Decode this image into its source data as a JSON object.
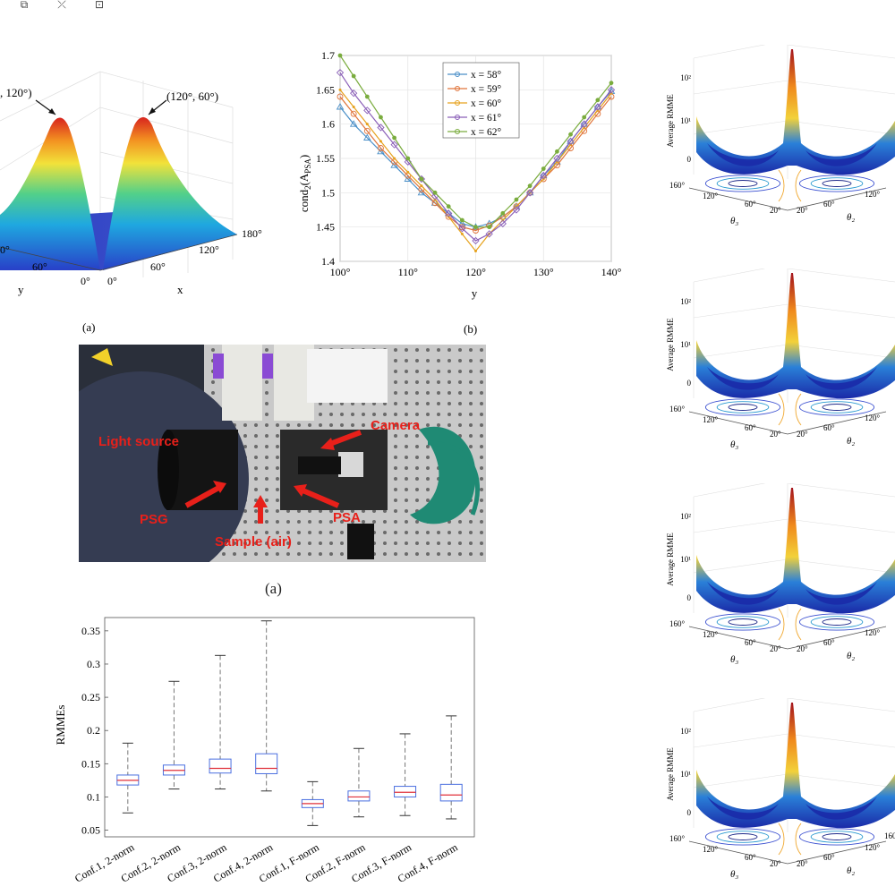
{
  "toolbar": {
    "icons": [
      "copy-icon",
      "split-icon",
      "expand-icon"
    ]
  },
  "surface3d": {
    "peak_left_label": ", 120°)",
    "peak_right_label": "(120°, 60°)",
    "axis_y_label": "y",
    "axis_x_label": "x",
    "y_ticks": [
      "0°",
      "60°",
      "0°"
    ],
    "x_ticks": [
      "0°",
      "60°",
      "120°",
      "180°"
    ],
    "caption": "(a)"
  },
  "cond_chart_caption": "(b)",
  "chart_data": [
    {
      "type": "line",
      "ylabel": "cond₂(A_PSA)",
      "xlabel": "y",
      "x": [
        100,
        102,
        104,
        106,
        108,
        110,
        112,
        114,
        116,
        118,
        120,
        122,
        124,
        126,
        128,
        130,
        132,
        134,
        136,
        138,
        140
      ],
      "xticks": [
        "100°",
        "110°",
        "120°",
        "130°",
        "140°"
      ],
      "yticks": [
        "1.4",
        "1.45",
        "1.5",
        "1.55",
        "1.6",
        "1.65",
        "1.7"
      ],
      "ylim": [
        1.4,
        1.7
      ],
      "xlim": [
        100,
        140
      ],
      "legend_position": "top-center",
      "grid": true,
      "series": [
        {
          "name": "x = 58°",
          "color": "#4a8fc8",
          "marker": "triangle",
          "values": [
            1.625,
            1.6,
            1.58,
            1.56,
            1.54,
            1.52,
            1.5,
            1.485,
            1.47,
            1.455,
            1.45,
            1.455,
            1.465,
            1.48,
            1.5,
            1.525,
            1.545,
            1.575,
            1.6,
            1.625,
            1.648
          ]
        },
        {
          "name": "x = 59°",
          "color": "#e0743a",
          "marker": "circle",
          "values": [
            1.64,
            1.615,
            1.59,
            1.565,
            1.545,
            1.525,
            1.505,
            1.485,
            1.465,
            1.45,
            1.445,
            1.452,
            1.465,
            1.48,
            1.5,
            1.52,
            1.54,
            1.565,
            1.59,
            1.615,
            1.64
          ]
        },
        {
          "name": "x = 60°",
          "color": "#e6a21e",
          "marker": "none",
          "values": [
            1.65,
            1.625,
            1.6,
            1.575,
            1.55,
            1.53,
            1.51,
            1.49,
            1.465,
            1.44,
            1.415,
            1.44,
            1.46,
            1.48,
            1.5,
            1.52,
            1.545,
            1.57,
            1.595,
            1.62,
            1.645
          ]
        },
        {
          "name": "x = 61°",
          "color": "#8a5fb8",
          "marker": "diamond",
          "values": [
            1.675,
            1.645,
            1.62,
            1.595,
            1.57,
            1.545,
            1.52,
            1.495,
            1.47,
            1.448,
            1.43,
            1.44,
            1.455,
            1.475,
            1.5,
            1.525,
            1.55,
            1.575,
            1.6,
            1.625,
            1.65
          ]
        },
        {
          "name": "x = 62°",
          "color": "#7aac3e",
          "marker": "dot",
          "values": [
            1.7,
            1.67,
            1.64,
            1.61,
            1.58,
            1.55,
            1.52,
            1.5,
            1.48,
            1.46,
            1.45,
            1.45,
            1.47,
            1.49,
            1.51,
            1.535,
            1.56,
            1.585,
            1.61,
            1.635,
            1.66
          ]
        }
      ]
    },
    {
      "type": "bar",
      "subtype": "boxplot",
      "ylabel": "RMMEs",
      "categories": [
        "Conf.1, 2-norm",
        "Conf.2, 2-norm",
        "Conf.3, 2-norm",
        "Conf.4, 2-norm",
        "Conf.1, F-norm",
        "Conf.2, F-norm",
        "Conf.3, F-norm",
        "Conf.4, F-norm"
      ],
      "yticks": [
        "0.05",
        "0.1",
        "0.15",
        "0.2",
        "0.25",
        "0.3",
        "0.35"
      ],
      "ylim": [
        0.04,
        0.37
      ],
      "boxes": [
        {
          "min": 0.076,
          "q1": 0.118,
          "median": 0.125,
          "q3": 0.133,
          "max": 0.181
        },
        {
          "min": 0.112,
          "q1": 0.133,
          "median": 0.14,
          "q3": 0.148,
          "max": 0.274
        },
        {
          "min": 0.112,
          "q1": 0.136,
          "median": 0.143,
          "q3": 0.157,
          "max": 0.313
        },
        {
          "min": 0.109,
          "q1": 0.135,
          "median": 0.143,
          "q3": 0.165,
          "max": 0.365
        },
        {
          "min": 0.057,
          "q1": 0.084,
          "median": 0.09,
          "q3": 0.096,
          "max": 0.123
        },
        {
          "min": 0.07,
          "q1": 0.094,
          "median": 0.1,
          "q3": 0.109,
          "max": 0.173
        },
        {
          "min": 0.072,
          "q1": 0.1,
          "median": 0.107,
          "q3": 0.116,
          "max": 0.195
        },
        {
          "min": 0.067,
          "q1": 0.094,
          "median": 0.103,
          "q3": 0.119,
          "max": 0.222
        }
      ]
    }
  ],
  "photo": {
    "labels": {
      "light_source": "Light source",
      "camera": "Camera",
      "psg": "PSG",
      "psa": "PSA",
      "sample": "Sample (air)"
    },
    "caption": "(a)"
  },
  "rmme_panels": [
    {
      "zlabel": "Average RMME",
      "zticks": [
        "10²",
        "10¹",
        "0"
      ],
      "left_ticks": [
        "160°",
        "120°",
        "60°",
        "20°"
      ],
      "right_ticks": [
        "20°",
        "60°",
        "120°"
      ],
      "theta_left": "θ₃",
      "theta_right": "θ₂"
    },
    {
      "zlabel": "Average RMME",
      "zticks": [
        "10²",
        "10¹",
        "0"
      ],
      "left_ticks": [
        "160°",
        "120°",
        "60°",
        "20°"
      ],
      "right_ticks": [
        "20°",
        "60°",
        "120°"
      ],
      "theta_left": "θ₃",
      "theta_right": "θ₂"
    },
    {
      "zlabel": "Average RMME",
      "zticks": [
        "10²",
        "10¹",
        "0"
      ],
      "left_ticks": [
        "160°",
        "120°",
        "60°",
        "20°"
      ],
      "right_ticks": [
        "20°",
        "60°",
        "120°"
      ],
      "theta_left": "θ₃",
      "theta_right": "θ₂"
    },
    {
      "zlabel": "Average RMME",
      "zticks": [
        "10²",
        "10¹",
        "0"
      ],
      "left_ticks": [
        "160°",
        "120°",
        "60°",
        "20°"
      ],
      "right_ticks": [
        "20°",
        "60°",
        "120°",
        "160"
      ],
      "theta_left": "θ₃",
      "theta_right": "θ₂"
    }
  ]
}
